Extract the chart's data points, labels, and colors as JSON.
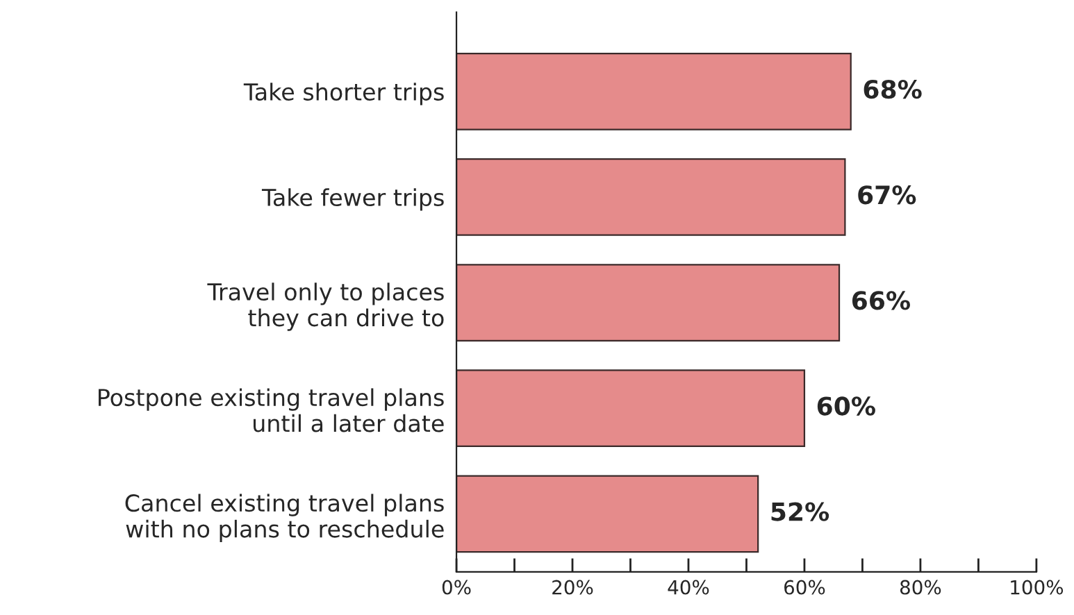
{
  "chart_data": {
    "type": "bar",
    "orientation": "horizontal",
    "categories": [
      "Take shorter trips",
      "Take fewer trips",
      "Travel only to places\nthey can drive to",
      "Postpone existing travel plans\nuntil a later date",
      "Cancel existing travel plans\nwith no plans to reschedule"
    ],
    "values": [
      68,
      67,
      66,
      60,
      52
    ],
    "color": "#e58b8b",
    "value_labels": [
      "68%",
      "67%",
      "66%",
      "60%",
      "52%"
    ],
    "xlim": [
      0,
      100
    ],
    "xticks": [
      {
        "value": 0,
        "label": "0%"
      },
      {
        "value": 10,
        "label": null
      },
      {
        "value": 20,
        "label": "20%"
      },
      {
        "value": 30,
        "label": null
      },
      {
        "value": 40,
        "label": "40%"
      },
      {
        "value": 50,
        "label": null
      },
      {
        "value": 60,
        "label": "60%"
      },
      {
        "value": 70,
        "label": null
      },
      {
        "value": 80,
        "label": "80%"
      },
      {
        "value": 90,
        "label": null
      },
      {
        "value": 100,
        "label": "100%"
      }
    ],
    "grid": false,
    "legend": false
  }
}
